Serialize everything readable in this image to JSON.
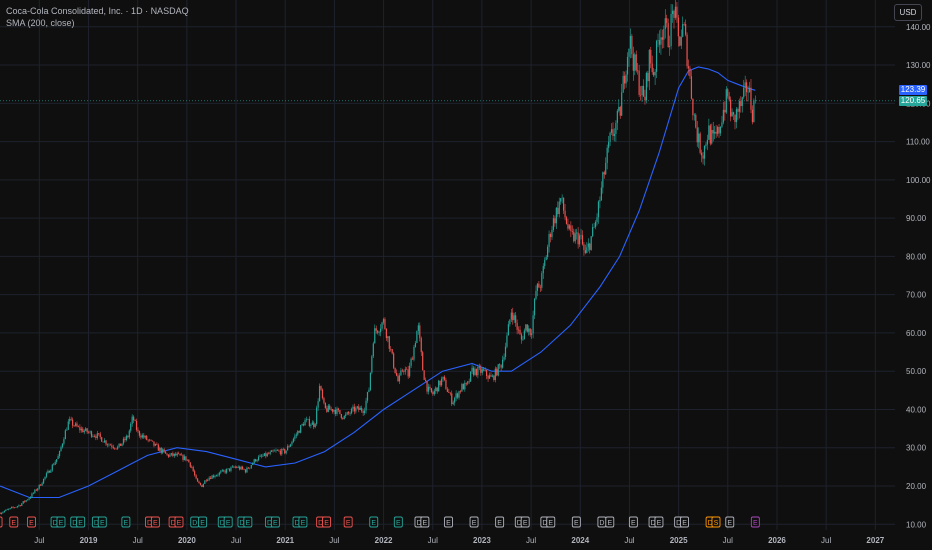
{
  "legend": {
    "symbol_line": "Coca-Cola Consolidated, Inc. · 1D · NASDAQ",
    "indicator_line": "SMA (200, close)"
  },
  "currency_button": "USD",
  "price_labels": {
    "sma_value": "123.39",
    "last_price": "120.65"
  },
  "colors": {
    "background": "#0f0f0f",
    "up": "#26a69a",
    "down": "#ef5350",
    "sma": "#2962ff",
    "grid": "#1e222d",
    "last_price_line": "#26a69a"
  },
  "chart_data": {
    "type": "line",
    "title": "Coca-Cola Consolidated, Inc. · 1D · NASDAQ",
    "y_axis_ticks": [
      10,
      20,
      30,
      40,
      50,
      60,
      70,
      80,
      90,
      100,
      110,
      120,
      130,
      140
    ],
    "y_axis_tick_labels": [
      "10.00",
      "20.00",
      "30.00",
      "40.00",
      "50.00",
      "60.00",
      "70.00",
      "80.00",
      "90.00",
      "100.00",
      "110.00",
      "120.00",
      "130.00",
      "140.00"
    ],
    "ylim": [
      8.5,
      147
    ],
    "x_axis_ticks": [
      {
        "t": 2018.5,
        "label": "Jul"
      },
      {
        "t": 2019.0,
        "label": "2019"
      },
      {
        "t": 2019.5,
        "label": "Jul"
      },
      {
        "t": 2020.0,
        "label": "2020"
      },
      {
        "t": 2020.5,
        "label": "Jul"
      },
      {
        "t": 2021.0,
        "label": "2021"
      },
      {
        "t": 2021.5,
        "label": "Jul"
      },
      {
        "t": 2022.0,
        "label": "2022"
      },
      {
        "t": 2022.5,
        "label": "Jul"
      },
      {
        "t": 2023.0,
        "label": "2023"
      },
      {
        "t": 2023.5,
        "label": "Jul"
      },
      {
        "t": 2024.0,
        "label": "2024"
      },
      {
        "t": 2024.5,
        "label": "Jul"
      },
      {
        "t": 2025.0,
        "label": "2025"
      },
      {
        "t": 2025.5,
        "label": "Jul"
      },
      {
        "t": 2026.0,
        "label": "2026"
      },
      {
        "t": 2026.5,
        "label": "Jul"
      },
      {
        "t": 2027.0,
        "label": "2027"
      }
    ],
    "xlim": [
      2018.1,
      2027.2
    ],
    "series": [
      {
        "kind": "price",
        "x": [
          2018.1,
          2018.2,
          2018.3,
          2018.4,
          2018.5,
          2018.6,
          2018.7,
          2018.75,
          2018.8,
          2018.9,
          2019.0,
          2019.1,
          2019.2,
          2019.3,
          2019.4,
          2019.45,
          2019.5,
          2019.6,
          2019.7,
          2019.75,
          2019.8,
          2019.9,
          2020.0,
          2020.05,
          2020.1,
          2020.15,
          2020.2,
          2020.3,
          2020.4,
          2020.5,
          2020.6,
          2020.7,
          2020.8,
          2020.9,
          2021.0,
          2021.1,
          2021.2,
          2021.3,
          2021.35,
          2021.4,
          2021.5,
          2021.6,
          2021.7,
          2021.8,
          2021.85,
          2021.9,
          2022.0,
          2022.05,
          2022.1,
          2022.15,
          2022.2,
          2022.25,
          2022.3,
          2022.35,
          2022.4,
          2022.45,
          2022.5,
          2022.6,
          2022.7,
          2022.8,
          2022.85,
          2022.9,
          2023.0,
          2023.1,
          2023.2,
          2023.25,
          2023.3,
          2023.4,
          2023.45,
          2023.5,
          2023.55,
          2023.6,
          2023.7,
          2023.8,
          2023.9,
          2024.0,
          2024.05,
          2024.1,
          2024.15,
          2024.2,
          2024.25,
          2024.3,
          2024.4,
          2024.45,
          2024.5,
          2024.55,
          2024.6,
          2024.65,
          2024.7,
          2024.75,
          2024.8,
          2024.85,
          2024.9,
          2024.95,
          2025.0,
          2025.05,
          2025.1,
          2025.15,
          2025.2,
          2025.25,
          2025.3,
          2025.35,
          2025.4,
          2025.45,
          2025.5,
          2025.55,
          2025.6,
          2025.65,
          2025.7,
          2025.75,
          2025.78
        ],
        "values": [
          13,
          14,
          15,
          17,
          20,
          24,
          28,
          33,
          37,
          35,
          34,
          33,
          31,
          30,
          33,
          38,
          34,
          32,
          30,
          29,
          28,
          28,
          27,
          25,
          21,
          20,
          22,
          23,
          24,
          25,
          24,
          27,
          28,
          29,
          29,
          33,
          37,
          36,
          46,
          40,
          40,
          38,
          40,
          40,
          45,
          60,
          63,
          58,
          52,
          47,
          51,
          49,
          55,
          62,
          50,
          45,
          44,
          48,
          42,
          46,
          46,
          50,
          50,
          48,
          52,
          58,
          66,
          58,
          62,
          60,
          71,
          73,
          87,
          95,
          85,
          85,
          80,
          84,
          88,
          95,
          103,
          110,
          117,
          128,
          137,
          130,
          125,
          120,
          132,
          128,
          138,
          140,
          137,
          145,
          136,
          140,
          130,
          118,
          110,
          107,
          113,
          110,
          112,
          118,
          122,
          115,
          118,
          120,
          125,
          118,
          120.65
        ]
      },
      {
        "kind": "sma",
        "name": "SMA (200, close)",
        "x": [
          2018.1,
          2018.4,
          2018.7,
          2019.0,
          2019.3,
          2019.6,
          2019.9,
          2020.2,
          2020.5,
          2020.8,
          2021.1,
          2021.4,
          2021.7,
          2022.0,
          2022.3,
          2022.6,
          2022.9,
          2023.1,
          2023.3,
          2023.6,
          2023.9,
          2024.2,
          2024.4,
          2024.6,
          2024.8,
          2025.0,
          2025.1,
          2025.2,
          2025.3,
          2025.4,
          2025.5,
          2025.6,
          2025.7,
          2025.78
        ],
        "values": [
          20,
          17,
          17,
          20,
          24,
          28,
          30,
          29,
          27,
          25,
          26,
          29,
          34,
          40,
          45,
          50,
          52,
          50,
          50,
          55,
          62,
          72,
          80,
          92,
          107,
          124,
          128.5,
          129.5,
          129,
          128,
          126,
          125,
          124,
          123.39
        ]
      }
    ],
    "event_markers": [
      {
        "t": 2018.08,
        "letter": "E",
        "kind": "down"
      },
      {
        "t": 2018.24,
        "letter": "E",
        "kind": "down"
      },
      {
        "t": 2018.42,
        "letter": "E",
        "kind": "down"
      },
      {
        "t": 2018.66,
        "letter": "D",
        "kind": "up"
      },
      {
        "t": 2018.72,
        "letter": "E",
        "kind": "up"
      },
      {
        "t": 2018.86,
        "letter": "D",
        "kind": "up"
      },
      {
        "t": 2018.92,
        "letter": "E",
        "kind": "up"
      },
      {
        "t": 2019.08,
        "letter": "D",
        "kind": "up"
      },
      {
        "t": 2019.14,
        "letter": "E",
        "kind": "up"
      },
      {
        "t": 2019.38,
        "letter": "E",
        "kind": "up"
      },
      {
        "t": 2019.62,
        "letter": "D",
        "kind": "down"
      },
      {
        "t": 2019.68,
        "letter": "E",
        "kind": "down"
      },
      {
        "t": 2019.86,
        "letter": "D",
        "kind": "down"
      },
      {
        "t": 2019.92,
        "letter": "E",
        "kind": "down"
      },
      {
        "t": 2020.08,
        "letter": "D",
        "kind": "up"
      },
      {
        "t": 2020.16,
        "letter": "E",
        "kind": "up"
      },
      {
        "t": 2020.36,
        "letter": "D",
        "kind": "up"
      },
      {
        "t": 2020.42,
        "letter": "E",
        "kind": "up"
      },
      {
        "t": 2020.56,
        "letter": "D",
        "kind": "up"
      },
      {
        "t": 2020.62,
        "letter": "E",
        "kind": "up"
      },
      {
        "t": 2020.84,
        "letter": "D",
        "kind": "up"
      },
      {
        "t": 2020.9,
        "letter": "E",
        "kind": "up"
      },
      {
        "t": 2021.12,
        "letter": "D",
        "kind": "up"
      },
      {
        "t": 2021.18,
        "letter": "E",
        "kind": "up"
      },
      {
        "t": 2021.36,
        "letter": "D",
        "kind": "down"
      },
      {
        "t": 2021.42,
        "letter": "E",
        "kind": "down"
      },
      {
        "t": 2021.64,
        "letter": "E",
        "kind": "down"
      },
      {
        "t": 2021.9,
        "letter": "E",
        "kind": "up"
      },
      {
        "t": 2022.15,
        "letter": "E",
        "kind": "up"
      },
      {
        "t": 2022.36,
        "letter": "D",
        "kind": "neutral"
      },
      {
        "t": 2022.42,
        "letter": "E",
        "kind": "neutral"
      },
      {
        "t": 2022.66,
        "letter": "E",
        "kind": "neutral"
      },
      {
        "t": 2022.92,
        "letter": "E",
        "kind": "neutral"
      },
      {
        "t": 2023.18,
        "letter": "E",
        "kind": "neutral"
      },
      {
        "t": 2023.38,
        "letter": "D",
        "kind": "neutral"
      },
      {
        "t": 2023.44,
        "letter": "E",
        "kind": "neutral"
      },
      {
        "t": 2023.64,
        "letter": "D",
        "kind": "neutral"
      },
      {
        "t": 2023.7,
        "letter": "E",
        "kind": "neutral"
      },
      {
        "t": 2023.96,
        "letter": "E",
        "kind": "neutral"
      },
      {
        "t": 2024.22,
        "letter": "D",
        "kind": "neutral"
      },
      {
        "t": 2024.3,
        "letter": "E",
        "kind": "neutral"
      },
      {
        "t": 2024.54,
        "letter": "E",
        "kind": "neutral"
      },
      {
        "t": 2024.74,
        "letter": "D",
        "kind": "neutral"
      },
      {
        "t": 2024.8,
        "letter": "E",
        "kind": "neutral"
      },
      {
        "t": 2025.0,
        "letter": "D",
        "kind": "neutral"
      },
      {
        "t": 2025.06,
        "letter": "E",
        "kind": "neutral"
      },
      {
        "t": 2025.32,
        "letter": "D",
        "kind": "orange"
      },
      {
        "t": 2025.38,
        "letter": "S",
        "kind": "orange"
      },
      {
        "t": 2025.52,
        "letter": "E",
        "kind": "neutral"
      },
      {
        "t": 2025.78,
        "letter": "E",
        "kind": "purple"
      }
    ]
  }
}
